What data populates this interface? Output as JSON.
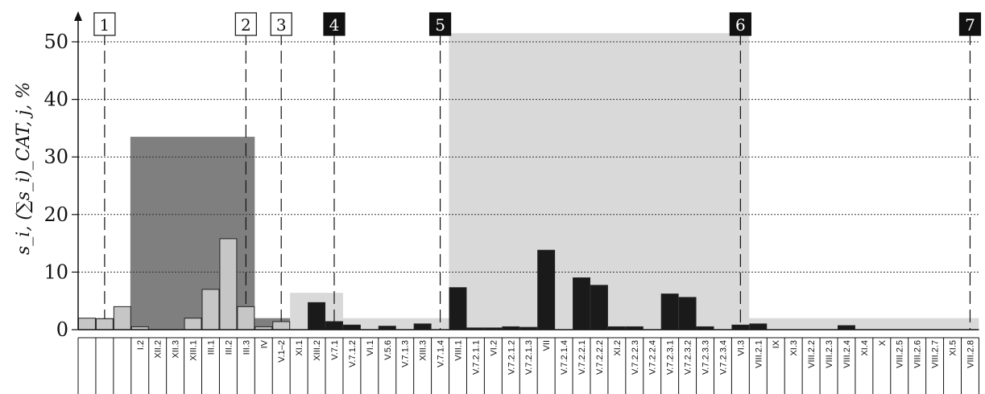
{
  "chart_data": {
    "type": "bar",
    "ylabel": "s_i, (∑s_i)_CAT, j, %",
    "ylim": [
      0,
      50
    ],
    "yticks": [
      0,
      10,
      20,
      30,
      40,
      50
    ],
    "grid": true,
    "categories": [
      "",
      "",
      "",
      "I.2",
      "XII.2",
      "XII.3",
      "XIII.1",
      "III.1",
      "III.2",
      "III.3",
      "IV",
      "V.1–2",
      "XI.1",
      "XIII.2",
      "V.7.1",
      "V.7.1.2",
      "VI.1",
      "V.5.6",
      "V.7.1.3",
      "XIII.3",
      "V.7.1.4",
      "VIII.1",
      "V.7.2.1.1",
      "VI.2",
      "V.7.2.1.2",
      "V.7.2.1.3",
      "VII",
      "V.7.2.1.4",
      "V.7.2.2.1",
      "V.7.2.2.2",
      "XI.2",
      "V.7.2.2.3",
      "V.7.2.2.4",
      "V.7.2.3.1",
      "V.7.2.3.2",
      "V.7.2.3.3",
      "V.7.2.3.4",
      "VI.3",
      "VIII.2.1",
      "IX",
      "XI.3",
      "VIII.2.2",
      "VIII.2.3",
      "VIII.2.4",
      "XI.4",
      "X",
      "VIII.2.5",
      "VIII.2.6",
      "VIII.2.7",
      "XI.5",
      "VIII.2.8"
    ],
    "values": [
      2.0,
      1.9,
      4.0,
      0.5,
      0,
      0,
      2.0,
      7.0,
      15.8,
      4.0,
      0.5,
      1.4,
      0,
      4.7,
      1.4,
      0.8,
      0,
      0.6,
      0,
      1.0,
      0,
      7.3,
      0.3,
      0.3,
      0.5,
      0.4,
      13.8,
      0,
      9.0,
      7.7,
      0.5,
      0.5,
      0,
      6.2,
      5.6,
      0.5,
      0,
      0.8,
      1.0,
      0,
      0,
      0,
      0,
      0.7,
      0,
      0,
      0,
      0,
      0,
      0,
      0
    ],
    "bar_color_groups": [
      "light",
      "light",
      "light",
      "light",
      "light",
      "light",
      "light",
      "light",
      "light",
      "light",
      "light",
      "light",
      "dark",
      "dark",
      "dark",
      "dark",
      "dark",
      "dark",
      "dark",
      "dark",
      "dark",
      "dark",
      "dark",
      "dark",
      "dark",
      "dark",
      "dark",
      "dark",
      "dark",
      "dark",
      "dark",
      "dark",
      "dark",
      "dark",
      "dark",
      "dark",
      "dark",
      "dark",
      "dark",
      "dark",
      "dark",
      "dark",
      "dark",
      "dark",
      "dark",
      "dark",
      "dark",
      "dark",
      "dark",
      "dark",
      "dark"
    ],
    "category_regions": [
      {
        "from": 2,
        "to": 9,
        "value": 33.5,
        "color": "#7f7f7f"
      },
      {
        "from": 0,
        "to": 11,
        "value": 2.0,
        "color": "#7f7f7f"
      },
      {
        "from": 12,
        "to": 14,
        "value": 6.4,
        "color": "#d9d9d9"
      },
      {
        "from": 15,
        "to": 20,
        "value": 2.0,
        "color": "#d9d9d9"
      },
      {
        "from": 21,
        "to": 37,
        "value": 51.5,
        "color": "#d9d9d9"
      },
      {
        "from": 38,
        "to": 50,
        "value": 2.0,
        "color": "#d9d9d9"
      }
    ],
    "markers": [
      {
        "label": "1",
        "style": "outline",
        "at": 1.5
      },
      {
        "label": "2",
        "style": "outline",
        "at": 9.5
      },
      {
        "label": "3",
        "style": "outline",
        "at": 11.5
      },
      {
        "label": "4",
        "style": "filled",
        "at": 14.5
      },
      {
        "label": "5",
        "style": "filled",
        "at": 20.5
      },
      {
        "label": "6",
        "style": "filled",
        "at": 37.5
      },
      {
        "label": "7",
        "style": "filled",
        "at": 50.5
      }
    ]
  }
}
